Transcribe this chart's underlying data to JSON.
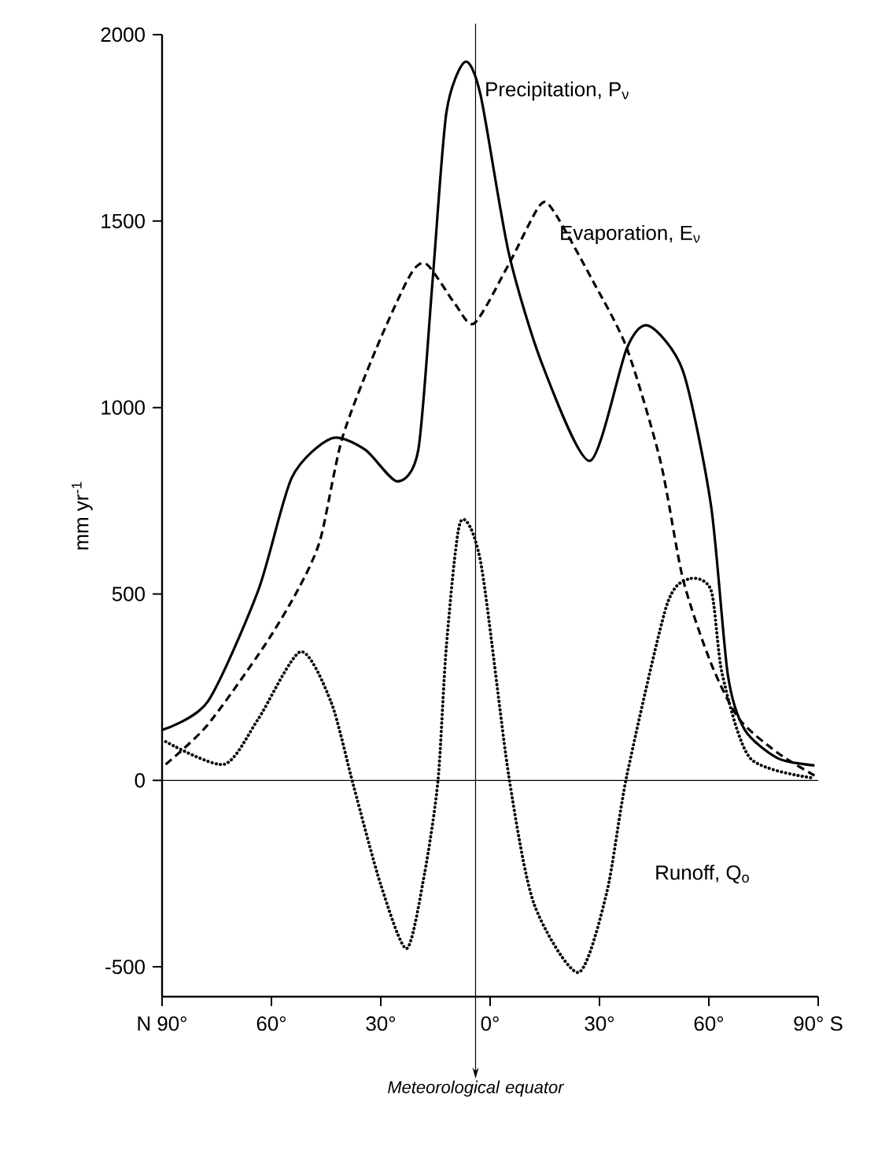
{
  "chart_data": {
    "type": "line",
    "ylabel": "mm yr$^{-1}$",
    "xlim": [
      -90,
      90
    ],
    "ylim": [
      -580,
      2000
    ],
    "xticks": [
      {
        "value": -90,
        "label": "N 90°"
      },
      {
        "value": -60,
        "label": "60°"
      },
      {
        "value": -30,
        "label": "30°"
      },
      {
        "value": 0,
        "label": "0°"
      },
      {
        "value": 30,
        "label": "30°"
      },
      {
        "value": 60,
        "label": "60°"
      },
      {
        "value": 90,
        "label": "90° S"
      }
    ],
    "yticks": [
      -500,
      0,
      500,
      1000,
      1500,
      2000
    ],
    "grid": false,
    "legend": false,
    "ref_lines": [
      {
        "axis": "y",
        "value": 0,
        "color": "#000000"
      },
      {
        "axis": "x",
        "value": -4,
        "label": "Meteorological equator",
        "color": "#000000"
      }
    ],
    "series": [
      {
        "name": "Precipitation, P$_{ν}$",
        "color": "#000000",
        "line_style": "solid",
        "x": [
          -90,
          -77.5,
          -63.6,
          -54.4,
          -43.6,
          -34.3,
          -25.5,
          -19.7,
          -15.8,
          -12,
          -6.9,
          -2.6,
          5.1,
          14.4,
          27.4,
          37.5,
          43.6,
          52.9,
          60.6,
          65.2,
          69.9,
          79,
          89
        ],
        "values": [
          135,
          211,
          510,
          812,
          917,
          887,
          802,
          887,
          1339,
          1791,
          1927,
          1837,
          1415,
          1113,
          857,
          1159,
          1219,
          1098,
          737,
          284,
          135,
          59,
          40
        ]
      },
      {
        "name": "Evaporation, E$_{ν}$",
        "color": "#000000",
        "line_style": "dashed",
        "x": [
          -89,
          -77.5,
          -62,
          -52.8,
          -46.6,
          -40.6,
          -31.2,
          -22,
          -17.4,
          -9.7,
          -4.3,
          5.1,
          13.6,
          17.4,
          28.2,
          37.5,
          46.7,
          52.9,
          60.6,
          68.3,
          79,
          89
        ],
        "values": [
          43,
          149,
          360,
          510,
          646,
          917,
          1159,
          1354,
          1384,
          1279,
          1226,
          1384,
          1542,
          1527,
          1339,
          1159,
          857,
          540,
          314,
          165,
          73,
          13
        ]
      },
      {
        "name": "Runoff, Q$_{o}$",
        "color": "#000000",
        "line_style": "dotted",
        "x": [
          -89,
          -73,
          -63.6,
          -52,
          -43.6,
          -37.4,
          -30,
          -22.9,
          -18,
          -14.3,
          -12,
          -8.2,
          -2.6,
          5.1,
          12,
          24.2,
          32,
          37.5,
          48.3,
          54.4,
          60.6,
          63.7,
          71.4,
          89
        ],
        "values": [
          104,
          43,
          165,
          345,
          209,
          -17,
          -280,
          -451,
          -250,
          0,
          360,
          692,
          586,
          13,
          -330,
          -515,
          -300,
          13,
          465,
          540,
          510,
          284,
          59,
          6
        ]
      }
    ]
  }
}
